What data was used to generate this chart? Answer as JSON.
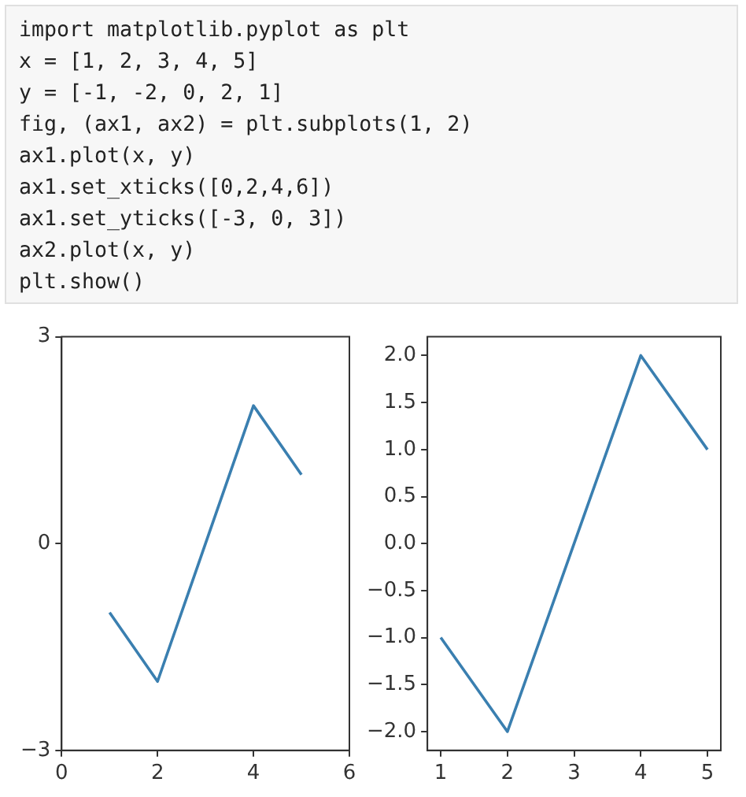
{
  "chart_data": [
    {
      "type": "line",
      "annotations": [
        "import matplotlib.pyplot as plt",
        "x = [1, 2, 3, 4, 5]",
        "y = [-1, -2, 0, 2, 1]",
        "fig, (ax1, ax2) = plt.subplots(1, 2)",
        "ax1.plot(x, y)",
        "ax1.set_xticks([0,2,4,6])",
        "ax1.set_yticks([-3, 0, 3])",
        "ax2.plot(x, y)",
        "plt.show()"
      ],
      "x": [
        1,
        2,
        3,
        4,
        5
      ],
      "series": [
        {
          "color": "#3a7fb0",
          "values": [
            -1,
            -2,
            0,
            2,
            1
          ]
        }
      ],
      "xlim": [
        0,
        6
      ],
      "xticks": [
        0,
        2,
        4,
        6
      ],
      "ylim": [
        -3,
        3
      ],
      "yticks": [
        {
          "value": -3,
          "label": "−3"
        },
        0,
        3
      ],
      "grid": false,
      "legend": false,
      "marker": "none",
      "line_style": "solid"
    },
    {
      "type": "line",
      "x": [
        1,
        2,
        3,
        4,
        5
      ],
      "series": [
        {
          "color": "#3a7fb0",
          "values": [
            -1,
            -2,
            0,
            2,
            1
          ]
        }
      ],
      "xlim": [
        0.8,
        5.2
      ],
      "xticks": [
        1,
        2,
        3,
        4,
        5
      ],
      "ylim": [
        -2.2,
        2.2
      ],
      "yticks": [
        {
          "value": -2,
          "label": "−2.0"
        },
        {
          "value": -1.5,
          "label": "−1.5"
        },
        {
          "value": -1,
          "label": "−1.0"
        },
        {
          "value": -0.5,
          "label": "−0.5"
        },
        {
          "value": 0,
          "label": "0.0"
        },
        {
          "value": 0.5,
          "label": "0.5"
        },
        {
          "value": 1,
          "label": "1.0"
        },
        {
          "value": 1.5,
          "label": "1.5"
        },
        {
          "value": 2,
          "label": "2.0"
        }
      ],
      "grid": false,
      "legend": false,
      "marker": "none",
      "line_style": "solid"
    }
  ]
}
